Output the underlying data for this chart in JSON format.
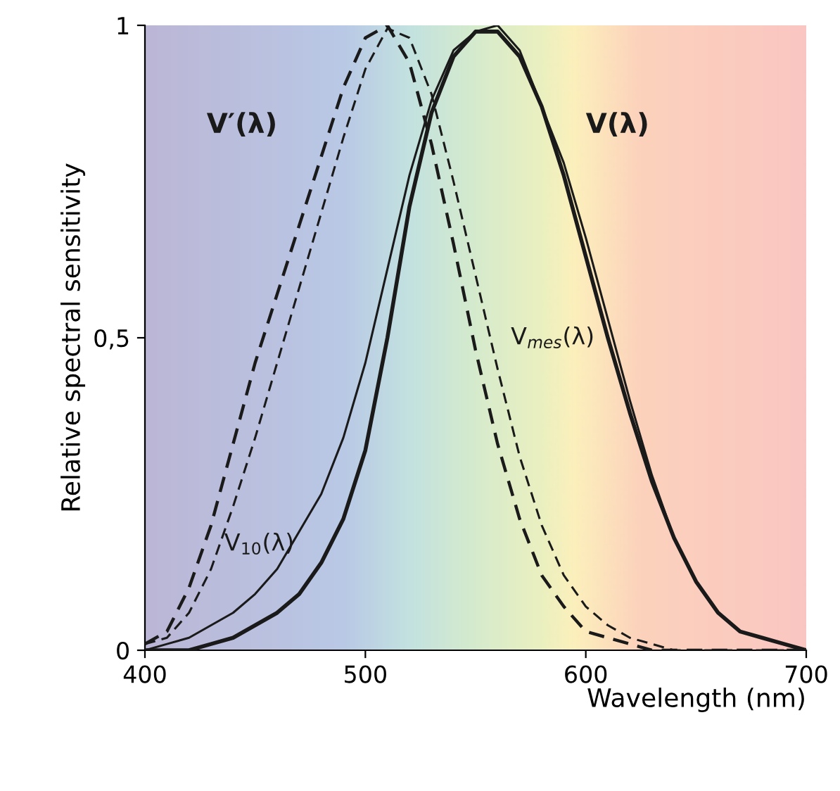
{
  "chart_data": {
    "type": "line",
    "xlabel": "Wavelength (nm)",
    "ylabel": "Relative spectral sensitivity",
    "x": [
      400,
      410,
      420,
      430,
      440,
      450,
      460,
      470,
      480,
      490,
      500,
      510,
      520,
      530,
      540,
      550,
      560,
      570,
      580,
      590,
      600,
      610,
      620,
      630,
      640,
      650,
      660,
      670,
      680,
      690,
      700
    ],
    "xlim": [
      400,
      700
    ],
    "ylim": [
      0,
      1
    ],
    "xticks": [
      400,
      500,
      600,
      700
    ],
    "yticks": [
      0,
      {
        "value": 0.5,
        "label": "0,5"
      },
      1
    ],
    "grid": false,
    "legend": false,
    "marker": "none",
    "series": [
      {
        "name": "V(λ)",
        "color": "#1a1a1a",
        "line_style": "solid",
        "values": [
          0,
          0,
          0,
          0.01,
          0.02,
          0.04,
          0.06,
          0.09,
          0.14,
          0.21,
          0.32,
          0.5,
          0.71,
          0.86,
          0.95,
          0.99,
          0.99,
          0.95,
          0.87,
          0.76,
          0.63,
          0.5,
          0.38,
          0.27,
          0.18,
          0.11,
          0.06,
          0.03,
          0.02,
          0.01,
          0
        ]
      },
      {
        "name": "V′(λ)",
        "color": "#1a1a1a",
        "line_style": "dashed",
        "values": [
          0.01,
          0.03,
          0.1,
          0.2,
          0.33,
          0.46,
          0.57,
          0.68,
          0.79,
          0.9,
          0.98,
          1,
          0.94,
          0.81,
          0.65,
          0.48,
          0.33,
          0.21,
          0.12,
          0.07,
          0.03,
          0.02,
          0.01,
          0,
          0,
          0,
          0,
          0,
          0,
          0,
          0
        ]
      },
      {
        "name": "V$_{10}$(λ)",
        "color": "#1a1a1a",
        "line_style": "solid",
        "values": [
          0,
          0.01,
          0.02,
          0.04,
          0.06,
          0.09,
          0.13,
          0.19,
          0.25,
          0.34,
          0.46,
          0.61,
          0.76,
          0.88,
          0.96,
          0.99,
          1,
          0.96,
          0.87,
          0.78,
          0.66,
          0.53,
          0.4,
          0.28,
          0.18,
          0.11,
          0.06,
          0.03,
          0.02,
          0.01,
          0
        ]
      },
      {
        "name": "V$_{mes}$(λ)",
        "color": "#1a1a1a",
        "line_style": "dashed",
        "values": [
          0.01,
          0.02,
          0.06,
          0.13,
          0.23,
          0.34,
          0.46,
          0.58,
          0.7,
          0.82,
          0.93,
          0.995,
          0.98,
          0.89,
          0.75,
          0.6,
          0.45,
          0.31,
          0.2,
          0.12,
          0.07,
          0.04,
          0.02,
          0.01,
          0,
          0,
          0,
          0,
          0,
          0,
          0
        ]
      }
    ]
  }
}
